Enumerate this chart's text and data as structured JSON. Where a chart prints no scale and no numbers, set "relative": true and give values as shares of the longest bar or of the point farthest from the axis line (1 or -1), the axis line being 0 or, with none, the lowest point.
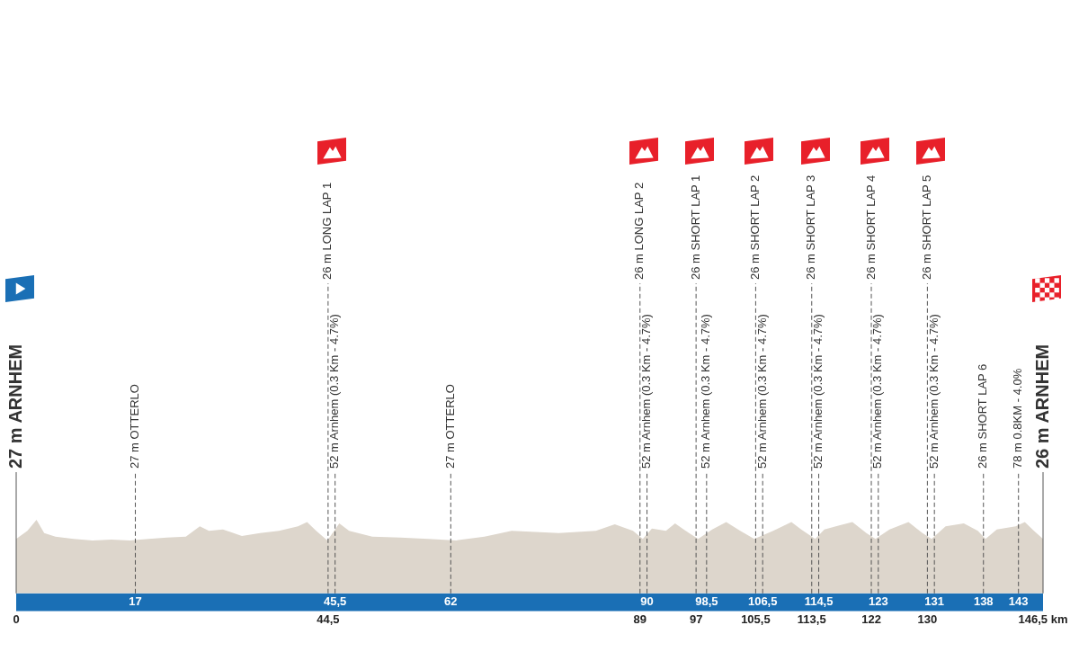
{
  "chart_data": {
    "type": "area",
    "relative": true,
    "color": "#ddd6cc",
    "legend": false,
    "grid": false,
    "x": [
      0,
      1.6,
      2.9,
      4.0,
      5.6,
      8.2,
      10.9,
      13.6,
      16.2,
      18.9,
      21.5,
      24.2,
      26.2,
      27.5,
      29.5,
      32.2,
      34.8,
      37.5,
      40.2,
      41.5,
      42.8,
      44.4,
      46.1,
      47.5,
      50.8,
      54.8,
      58.8,
      62.8,
      66.8,
      70.7,
      77.4,
      82.7,
      85.4,
      88.0,
      89.4,
      90.7,
      92.7,
      94.0,
      96.0,
      97.3,
      99.3,
      101.3,
      103.3,
      105.3,
      108.0,
      110.6,
      112.0,
      114.0,
      115.3,
      117.3,
      119.3,
      121.3,
      122.6,
      124.6,
      127.3,
      129.3,
      130.6,
      132.6,
      135.2,
      137.2,
      138.3,
      139.9,
      142.6,
      143.9,
      145.2,
      146.5
    ],
    "values": [
      0.74,
      0.85,
      1,
      0.82,
      0.77,
      0.74,
      0.72,
      0.73,
      0.72,
      0.74,
      0.76,
      0.77,
      0.91,
      0.85,
      0.87,
      0.78,
      0.82,
      0.85,
      0.91,
      0.97,
      0.85,
      0.72,
      0.95,
      0.85,
      0.77,
      0.76,
      0.74,
      0.72,
      0.77,
      0.85,
      0.82,
      0.85,
      0.94,
      0.85,
      0.74,
      0.88,
      0.85,
      0.95,
      0.82,
      0.74,
      0.87,
      0.97,
      0.85,
      0.74,
      0.85,
      0.97,
      0.87,
      0.74,
      0.87,
      0.92,
      0.97,
      0.82,
      0.74,
      0.87,
      0.97,
      0.82,
      0.74,
      0.91,
      0.95,
      0.85,
      0.74,
      0.87,
      0.91,
      0.97,
      0.85,
      0.74
    ],
    "xlim": [
      0,
      146.5
    ],
    "xticks": [
      17,
      {
        "value": 45.5,
        "label": "45,5"
      },
      62,
      90,
      {
        "value": 98.5,
        "label": "98,5"
      },
      {
        "value": 106.5,
        "label": "106,5"
      },
      {
        "value": 114.5,
        "label": "114,5"
      },
      123,
      131,
      138,
      143
    ],
    "x2lim": [
      0,
      146.5
    ],
    "x2ticks": [
      0,
      {
        "value": 44.5,
        "label": "44,5"
      },
      89,
      97,
      {
        "value": 105.5,
        "label": "105,5"
      },
      {
        "value": 113.5,
        "label": "113,5"
      },
      122,
      130,
      {
        "value": 146.5,
        "label": "146,5 km"
      }
    ],
    "ref_lines": [
      {
        "axis": "x",
        "value": 0,
        "label": "27 m ARNHEM",
        "line_style": "solid"
      },
      {
        "axis": "x",
        "value": 17,
        "label": "27 m OTTERLO",
        "line_style": "dashed"
      },
      {
        "axis": "x",
        "value": 44.5,
        "label": "26 m LONG LAP 1",
        "line_style": "dashed"
      },
      {
        "axis": "x",
        "value": 45.5,
        "label": "52 m Arnhem (0.3 Km - 4.7%)",
        "line_style": "dashed"
      },
      {
        "axis": "x",
        "value": 62,
        "label": "27 m OTTERLO",
        "line_style": "dashed"
      },
      {
        "axis": "x",
        "value": 89,
        "label": "26 m LONG LAP 2",
        "line_style": "dashed"
      },
      {
        "axis": "x",
        "value": 90,
        "label": "52 m Arnhem (0.3 Km - 4.7%)",
        "line_style": "dashed"
      },
      {
        "axis": "x",
        "value": 97,
        "label": "26 m SHORT LAP 1",
        "line_style": "dashed"
      },
      {
        "axis": "x",
        "value": 98.5,
        "label": "52 m Arnhem (0.3 Km - 4.7%)",
        "line_style": "dashed"
      },
      {
        "axis": "x",
        "value": 105.5,
        "label": "26 m SHORT LAP 2",
        "line_style": "dashed"
      },
      {
        "axis": "x",
        "value": 106.5,
        "label": "52 m Arnhem (0.3 Km - 4.7%)",
        "line_style": "dashed"
      },
      {
        "axis": "x",
        "value": 113.5,
        "label": "26 m SHORT LAP 3",
        "line_style": "dashed"
      },
      {
        "axis": "x",
        "value": 114.5,
        "label": "52 m Arnhem (0.3 Km - 4.7%)",
        "line_style": "dashed"
      },
      {
        "axis": "x",
        "value": 122,
        "label": "26 m SHORT LAP 4",
        "line_style": "dashed"
      },
      {
        "axis": "x",
        "value": 123,
        "label": "52 m Arnhem (0.3 Km - 4.7%)",
        "line_style": "dashed"
      },
      {
        "axis": "x",
        "value": 130,
        "label": "26 m SHORT LAP 5",
        "line_style": "dashed"
      },
      {
        "axis": "x",
        "value": 131,
        "label": "52 m Arnhem (0.3 Km - 4.7%)",
        "line_style": "dashed"
      },
      {
        "axis": "x",
        "value": 138,
        "label": "26 m SHORT LAP 6",
        "line_style": "dashed"
      },
      {
        "axis": "x",
        "value": 143,
        "label": "78 m 0.8KM - 4.0%",
        "line_style": "dashed"
      },
      {
        "axis": "x",
        "value": 146.5,
        "label": "26 m ARNHEM",
        "line_style": "solid"
      }
    ]
  }
}
